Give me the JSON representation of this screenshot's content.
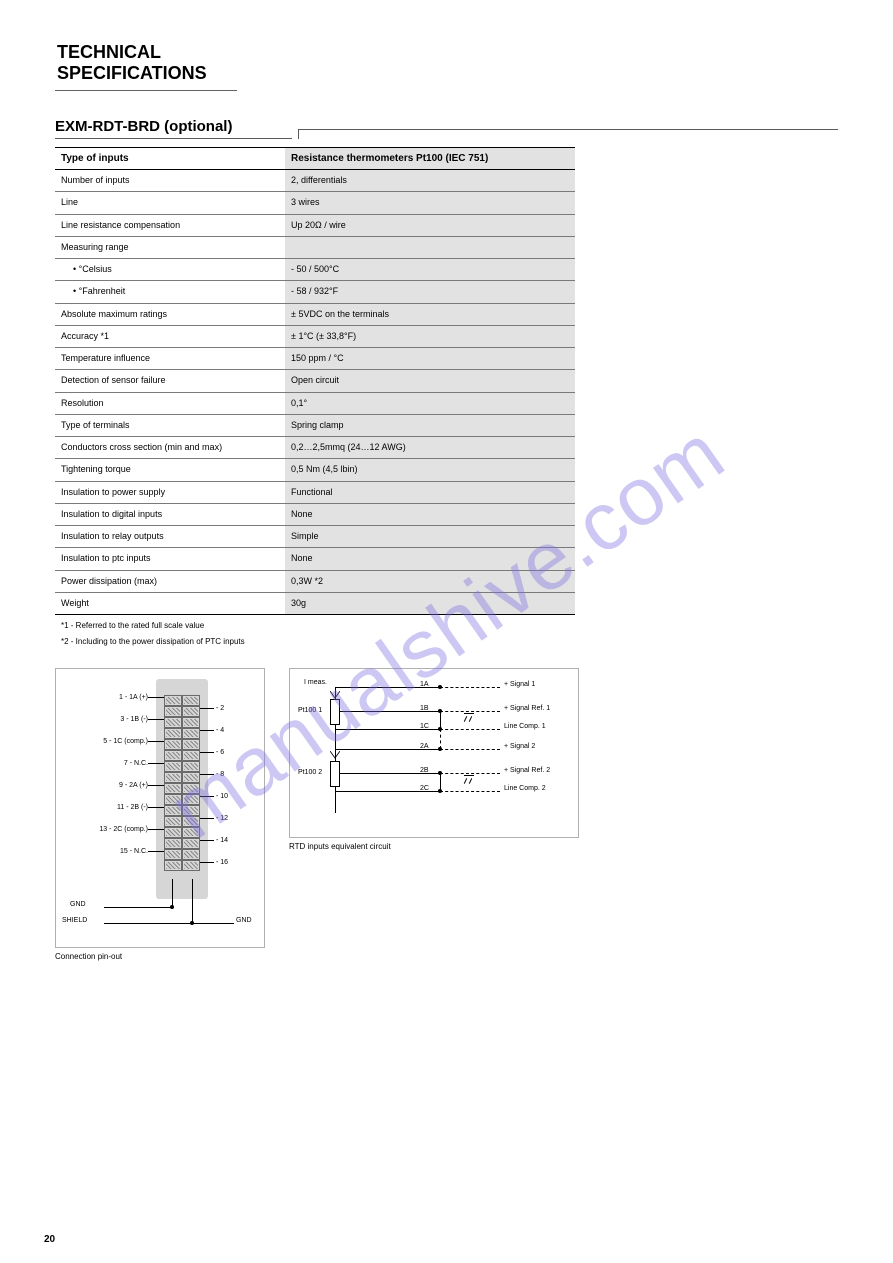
{
  "page_number": "20",
  "watermark": "manualshive.com",
  "title": {
    "line1": "TECHNICAL",
    "line2": "SPECIFICATIONS"
  },
  "section": {
    "heading": "EXM-RDT-BRD (optional)"
  },
  "specs": {
    "header": {
      "label": "Type of inputs",
      "value": "Resistance thermometers Pt100 (IEC 751)"
    },
    "rows": [
      {
        "label": "Number of inputs",
        "value": "2, differentials"
      },
      {
        "label": "Line",
        "value": "3 wires"
      },
      {
        "label": "Line resistance compensation",
        "value": "Up 20Ω / wire"
      },
      {
        "label": "Measuring range",
        "value": ""
      },
      {
        "label": "• °Celsius",
        "value": "- 50 / 500°C",
        "indent": true
      },
      {
        "label": "• °Fahrenheit",
        "value": "- 58 / 932°F",
        "indent": true
      },
      {
        "label": "Absolute maximum ratings",
        "value": "± 5VDC on the terminals"
      },
      {
        "label": "Accuracy *1",
        "value": "± 1°C (± 33,8°F)"
      },
      {
        "label": "Temperature influence",
        "value": "150 ppm / °C"
      },
      {
        "label": "Detection of sensor failure",
        "value": "Open circuit"
      },
      {
        "label": "Resolution",
        "value": "0,1°"
      },
      {
        "label": "Type of terminals",
        "value": "Spring clamp"
      },
      {
        "label": "Conductors cross section (min and max)",
        "value": "0,2…2,5mmq (24…12 AWG)"
      },
      {
        "label": "Tightening torque",
        "value": "0,5 Nm (4,5 lbin)"
      },
      {
        "label": "Insulation to power supply",
        "value": "Functional"
      },
      {
        "label": "Insulation to digital inputs",
        "value": "None"
      },
      {
        "label": "Insulation to relay outputs",
        "value": "Simple"
      },
      {
        "label": "Insulation to ptc inputs",
        "value": "None"
      },
      {
        "label": "Power dissipation (max)",
        "value": "0,3W *2"
      },
      {
        "label": "Weight",
        "value": "30g"
      }
    ]
  },
  "footnotes": [
    "*1 - Referred to the rated full scale value",
    "*2 - Including to the power dissipation of PTC inputs"
  ],
  "figures": {
    "pin": {
      "caption": "Connection pin-out",
      "labels_left": [
        "1 - 1A (+)",
        "3 - 1B (-)",
        "5 - 1C (comp.)",
        "7 - N.C.",
        "9 - 2A (+)",
        "11 - 2B (-)",
        "13 - 2C (comp.)",
        "15 - N.C."
      ],
      "labels_right": [
        "- 2",
        "- 4",
        "- 6",
        "- 8",
        "- 10",
        "- 12",
        "- 14",
        "- 16"
      ],
      "bottom_labels": [
        "GND",
        "SHIELD",
        "GND"
      ]
    },
    "schematic": {
      "caption": "RTD inputs equivalent circuit",
      "labels": {
        "imeas": "I meas.",
        "sig1": "+ Signal 1",
        "ref1": "+ Signal Ref. 1",
        "comp1": "Line Comp. 1",
        "sig2": "+ Signal 2",
        "ref2": "+ Signal Ref. 2",
        "comp2": "Line Comp. 2",
        "pt1": "Pt100 1",
        "pt2": "Pt100 2",
        "t1a": "1A",
        "t1b": "1B",
        "t1c": "1C",
        "t2a": "2A",
        "t2b": "2B",
        "t2c": "2C"
      }
    }
  }
}
